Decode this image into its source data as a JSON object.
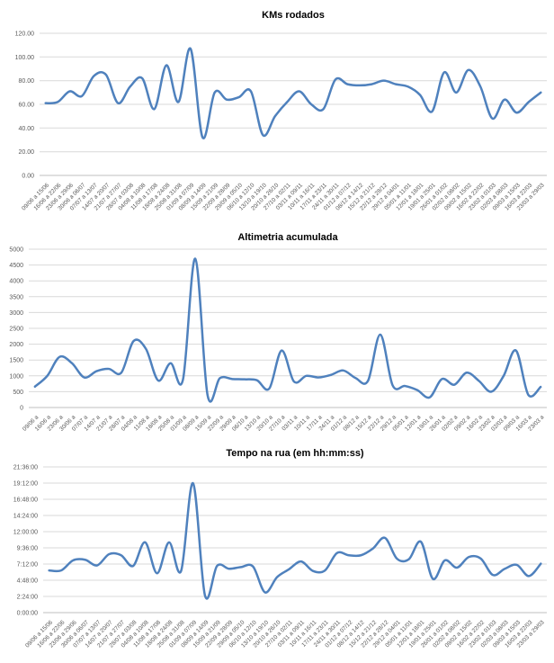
{
  "style": {
    "background": "#ffffff",
    "line_color": "#4F81BD",
    "gridline_color": "#D9D9D9",
    "axis_line_color": "#BFBFBF",
    "tick_label_color": "#595959",
    "title_color": "#000000"
  },
  "week_labels_full": [
    "09/06 a 15/06",
    "16/06 a 22/06",
    "23/06 a 29/06",
    "30/06 a 06/07",
    "07/07 a 13/07",
    "14/07 a 20/07",
    "21/07 a 27/07",
    "28/07 a 03/08",
    "04/08 a 10/08",
    "11/08 a 17/08",
    "18/08 a 24/08",
    "25/08 a 31/08",
    "01/09 a 07/09",
    "08/09 a 14/09",
    "15/09 a 21/09",
    "22/09 a 28/09",
    "29/09 a 05/10",
    "06/10 a 12/10",
    "13/10 a 19/10",
    "20/10 a 26/10",
    "27/10 a 02/11",
    "03/11 a 09/11",
    "10/11 a 16/11",
    "17/11 a 23/11",
    "24/11 a 30/11",
    "01/12 a 07/12",
    "08/12 a 14/12",
    "15/12 a 21/12",
    "22/12 a 28/12",
    "29/12 a 04/01",
    "05/01 a 11/01",
    "12/01 a 18/01",
    "19/01 a 25/01",
    "26/01 a 01/02",
    "02/02 a 08/02",
    "09/02 a 15/02",
    "16/02 a 22/02",
    "23/02 a 01/03",
    "02/03 a 08/03",
    "09/03 a 15/03",
    "16/03 a 22/03",
    "23/03 a 29/03"
  ],
  "week_labels_short": [
    "09/06 a",
    "16/06 a",
    "23/06 a",
    "30/06 a",
    "07/07 a",
    "14/07 a",
    "21/07 a",
    "28/07 a",
    "04/08 a",
    "11/08 a",
    "18/08 a",
    "25/08 a",
    "01/09 a",
    "08/09 a",
    "15/09 a",
    "22/09 a",
    "29/09 a",
    "06/10 a",
    "13/10 a",
    "20/10 a",
    "27/10 a",
    "03/11 a",
    "10/11 a",
    "17/11 a",
    "24/11 a",
    "01/12 a",
    "08/12 a",
    "15/12 a",
    "22/12 a",
    "29/12 a",
    "05/01 a",
    "12/01 a",
    "19/01 a",
    "26/01 a",
    "02/02 a",
    "09/02 a",
    "16/02 a",
    "23/02 a",
    "02/03 a",
    "09/03 a",
    "16/03 a",
    "23/03 a"
  ],
  "chart_data": [
    {
      "type": "line",
      "title": "KMs rodados",
      "smooth": true,
      "grid": "horizontal",
      "legend": "none",
      "categories_ref": "week_labels_full",
      "values": [
        61,
        62,
        71,
        67,
        84,
        85,
        61,
        75,
        82,
        56,
        93,
        62,
        107,
        32,
        70,
        64,
        66,
        71,
        34,
        50,
        62,
        71,
        60,
        56,
        81,
        77,
        76,
        77,
        80,
        77,
        75,
        68,
        54,
        87,
        70,
        89,
        75,
        48,
        64,
        53,
        62,
        70
      ],
      "ylim": [
        0,
        120
      ],
      "ytick_step": 20,
      "y_tick_labels": [
        "0.00",
        "20.00",
        "40.00",
        "60.00",
        "80.00",
        "100.00",
        "120.00"
      ]
    },
    {
      "type": "line",
      "title": "Altimetria acumulada",
      "smooth": true,
      "grid": "horizontal",
      "legend": "none",
      "categories_ref": "week_labels_short",
      "values": [
        660,
        1000,
        1600,
        1400,
        950,
        1150,
        1220,
        1100,
        2100,
        1850,
        850,
        1400,
        880,
        4700,
        380,
        930,
        900,
        890,
        860,
        600,
        1800,
        820,
        1000,
        950,
        1030,
        1170,
        930,
        840,
        2300,
        700,
        680,
        550,
        320,
        900,
        720,
        1100,
        840,
        500,
        1000,
        1800,
        400,
        650
      ],
      "ylim": [
        0,
        5000
      ],
      "ytick_step": 500,
      "y_tick_labels": [
        "0",
        "500",
        "1000",
        "1500",
        "2000",
        "2500",
        "3000",
        "3500",
        "4000",
        "4500",
        "5000"
      ]
    },
    {
      "type": "line",
      "title": "Tempo na rua (em hh:mm:ss)",
      "smooth": true,
      "grid": "horizontal",
      "legend": "none",
      "categories_ref": "week_labels_full",
      "y_unit": "hours",
      "values": [
        6.25,
        6.25,
        7.75,
        7.83,
        7.0,
        8.67,
        8.5,
        6.92,
        10.42,
        5.83,
        10.42,
        6.17,
        19.17,
        2.5,
        6.92,
        6.5,
        6.75,
        6.83,
        3.0,
        5.25,
        6.42,
        7.58,
        6.17,
        6.25,
        8.83,
        8.5,
        8.5,
        9.5,
        11.08,
        8.0,
        7.92,
        10.5,
        5.0,
        7.75,
        6.67,
        8.25,
        8.0,
        5.58,
        6.5,
        7.08,
        5.42,
        7.25
      ],
      "ylim": [
        0,
        21.6
      ],
      "ytick_step": 2.4,
      "y_tick_labels": [
        "0:00:00",
        "2:24:00",
        "4:48:00",
        "7:12:00",
        "9:36:00",
        "12:00:00",
        "14:24:00",
        "16:48:00",
        "19:12:00",
        "21:36:00"
      ]
    }
  ]
}
